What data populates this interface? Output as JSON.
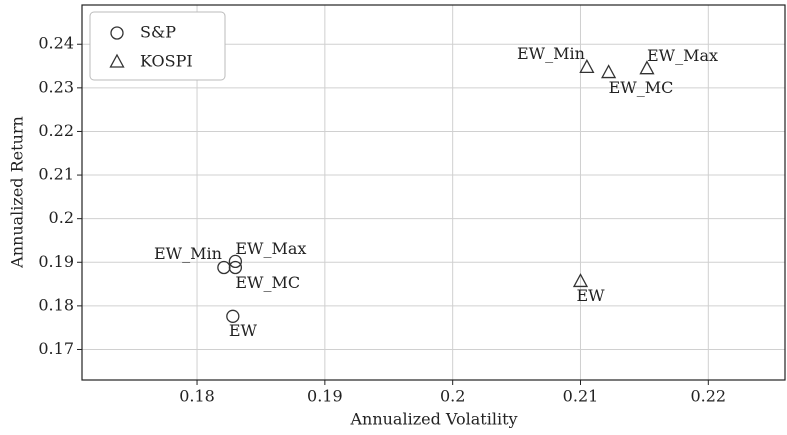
{
  "chart_data": {
    "type": "scatter",
    "x_label": "Annualized Volatility",
    "y_label": "Annualized Return",
    "xlim": [
      0.171,
      0.226
    ],
    "ylim": [
      0.163,
      0.249
    ],
    "xticks": [
      0.18,
      0.19,
      0.2,
      0.21,
      0.22
    ],
    "yticks": [
      0.17,
      0.18,
      0.19,
      0.2,
      0.21,
      0.22,
      0.23,
      0.24
    ],
    "grid": true,
    "legend": "upper-left",
    "series": [
      {
        "name": "S&P",
        "marker": "circle",
        "color": "#333333",
        "labels": [
          "EW_Min",
          "EW_Max",
          "EW_MC",
          "EW"
        ],
        "x": [
          0.1821,
          0.183,
          0.183,
          0.1828
        ],
        "values": [
          0.1888,
          0.1902,
          0.1888,
          0.1776
        ]
      },
      {
        "name": "KOSPI",
        "marker": "triangle",
        "color": "#333333",
        "labels": [
          "EW_Min",
          "EW_Max",
          "EW_MC",
          "EW"
        ],
        "x": [
          0.2105,
          0.2152,
          0.2122,
          0.21
        ],
        "values": [
          0.2347,
          0.2344,
          0.2335,
          0.1856
        ]
      }
    ]
  }
}
